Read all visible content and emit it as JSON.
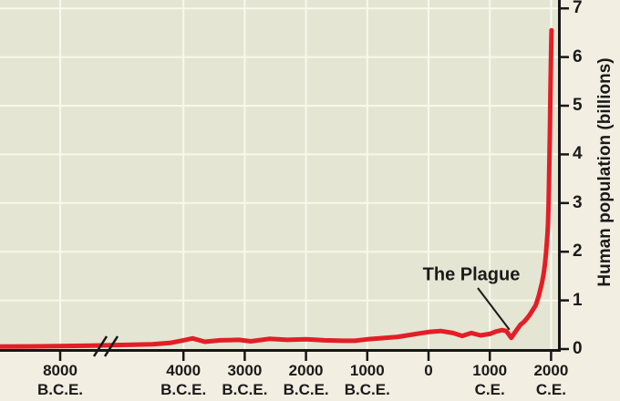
{
  "labels": {
    "y_axis_title": "Human population (billions)",
    "plague_annotation": "The Plague"
  },
  "colors": {
    "outer_bg": "#f2eee1",
    "plot_bg": "#e4e5d3",
    "gridline": "#f9f8ec",
    "curve_red": "#e31e26",
    "axis_black": "#161616",
    "text_black": "#1a1a1a"
  },
  "chart_data": {
    "type": "line",
    "title": "",
    "xlabel": "",
    "ylabel": "Human population (billions)",
    "ylim": [
      0,
      7
    ],
    "yticks": [
      0,
      1,
      2,
      3,
      4,
      5,
      6,
      7
    ],
    "grid": true,
    "x_axis_break_between": [
      "8000 B.C.E.",
      "4000 B.C.E."
    ],
    "xticks": [
      {
        "year": -8000,
        "label": "8000",
        "era": "B.C.E."
      },
      {
        "year": -4000,
        "label": "4000",
        "era": "B.C.E."
      },
      {
        "year": -3000,
        "label": "3000",
        "era": "B.C.E."
      },
      {
        "year": -2000,
        "label": "2000",
        "era": "B.C.E."
      },
      {
        "year": -1000,
        "label": "1000",
        "era": "B.C.E."
      },
      {
        "year": 0,
        "label": "0",
        "era": ""
      },
      {
        "year": 1000,
        "label": "1000",
        "era": "C.E."
      },
      {
        "year": 2000,
        "label": "2000",
        "era": "C.E."
      }
    ],
    "series": [
      {
        "name": "Human population (billions)",
        "color": "#e31e26",
        "points": [
          [
            -10100,
            0.05
          ],
          [
            -9000,
            0.055
          ],
          [
            -8000,
            0.06
          ],
          [
            -7000,
            0.07
          ],
          [
            -6000,
            0.085
          ],
          [
            -5000,
            0.1
          ],
          [
            -4400,
            0.13
          ],
          [
            -4000,
            0.18
          ],
          [
            -3850,
            0.22
          ],
          [
            -3650,
            0.15
          ],
          [
            -3400,
            0.18
          ],
          [
            -3100,
            0.19
          ],
          [
            -2900,
            0.16
          ],
          [
            -2600,
            0.21
          ],
          [
            -2300,
            0.19
          ],
          [
            -2000,
            0.2
          ],
          [
            -1700,
            0.18
          ],
          [
            -1400,
            0.17
          ],
          [
            -1200,
            0.17
          ],
          [
            -1000,
            0.2
          ],
          [
            -800,
            0.22
          ],
          [
            -500,
            0.25
          ],
          [
            -200,
            0.31
          ],
          [
            1,
            0.35
          ],
          [
            200,
            0.37
          ],
          [
            400,
            0.33
          ],
          [
            550,
            0.27
          ],
          [
            700,
            0.33
          ],
          [
            850,
            0.28
          ],
          [
            1000,
            0.31
          ],
          [
            1100,
            0.36
          ],
          [
            1200,
            0.39
          ],
          [
            1270,
            0.37
          ],
          [
            1350,
            0.23
          ],
          [
            1420,
            0.36
          ],
          [
            1500,
            0.5
          ],
          [
            1550,
            0.55
          ],
          [
            1600,
            0.62
          ],
          [
            1650,
            0.7
          ],
          [
            1700,
            0.8
          ],
          [
            1750,
            0.9
          ],
          [
            1800,
            1.1
          ],
          [
            1850,
            1.35
          ],
          [
            1880,
            1.55
          ],
          [
            1900,
            1.75
          ],
          [
            1920,
            2.0
          ],
          [
            1940,
            2.35
          ],
          [
            1950,
            2.55
          ],
          [
            1960,
            3.0
          ],
          [
            1970,
            3.7
          ],
          [
            1980,
            4.45
          ],
          [
            1990,
            5.3
          ],
          [
            2000,
            6.1
          ],
          [
            2007,
            6.55
          ]
        ]
      }
    ],
    "annotations": [
      {
        "text": "The Plague",
        "target_year": 1350,
        "target_pop": 0.23
      }
    ]
  }
}
